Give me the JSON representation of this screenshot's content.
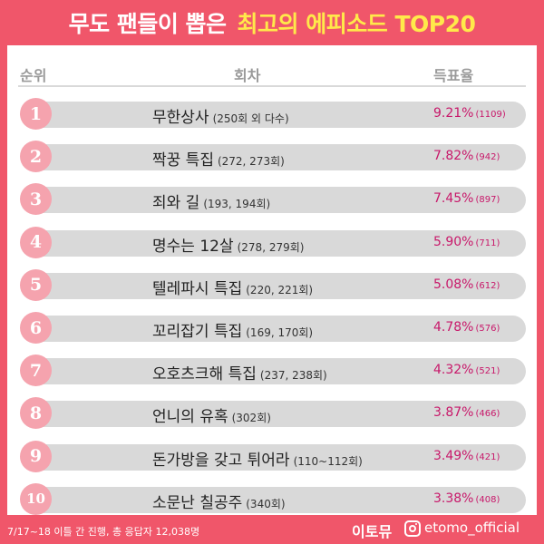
{
  "title": {
    "part1": "무도 팬들이 뽑은",
    "part2": "최고의 에피소드 TOP20"
  },
  "header": {
    "rank": "순위",
    "episode": "회차",
    "votes": "득표율"
  },
  "rows": [
    {
      "rank": "1",
      "name": "무한상사",
      "detail": "(250회 외 다수)",
      "pct": "9.21%",
      "count": "(1109)"
    },
    {
      "rank": "2",
      "name": "짝꿍 특집",
      "detail": "(272, 273회)",
      "pct": "7.82%",
      "count": "(942)"
    },
    {
      "rank": "3",
      "name": "죄와 길",
      "detail": "(193, 194회)",
      "pct": "7.45%",
      "count": "(897)"
    },
    {
      "rank": "4",
      "name": "명수는 12살",
      "detail": "(278, 279회)",
      "pct": "5.90%",
      "count": "(711)"
    },
    {
      "rank": "5",
      "name": "텔레파시 특집",
      "detail": "(220, 221회)",
      "pct": "5.08%",
      "count": "(612)"
    },
    {
      "rank": "6",
      "name": "꼬리잡기 특집",
      "detail": "(169, 170회)",
      "pct": "4.78%",
      "count": "(576)"
    },
    {
      "rank": "7",
      "name": "오호츠크해 특집",
      "detail": "(237, 238회)",
      "pct": "4.32%",
      "count": "(521)"
    },
    {
      "rank": "8",
      "name": "언니의 유혹",
      "detail": "(302회)",
      "pct": "3.87%",
      "count": "(466)"
    },
    {
      "rank": "9",
      "name": "돈가방을 갖고 튀어라",
      "detail": "(110~112회)",
      "pct": "3.49%",
      "count": "(421)"
    },
    {
      "rank": "10",
      "name": "소문난 칠공주",
      "detail": "(340회)",
      "pct": "3.38%",
      "count": "(408)"
    }
  ],
  "footer": {
    "note": "7/17~18 이틀 간 진행, 총 응답자 12,038명",
    "brand": "이토뮤",
    "icon": "instagram-icon",
    "handle": "etomo_official"
  },
  "colors": {
    "accent": "#f0566a",
    "title_highlight": "#ffe94a",
    "badge": "#f5a3ae",
    "bar": "#d9d9d9",
    "percent": "#c8186a"
  }
}
